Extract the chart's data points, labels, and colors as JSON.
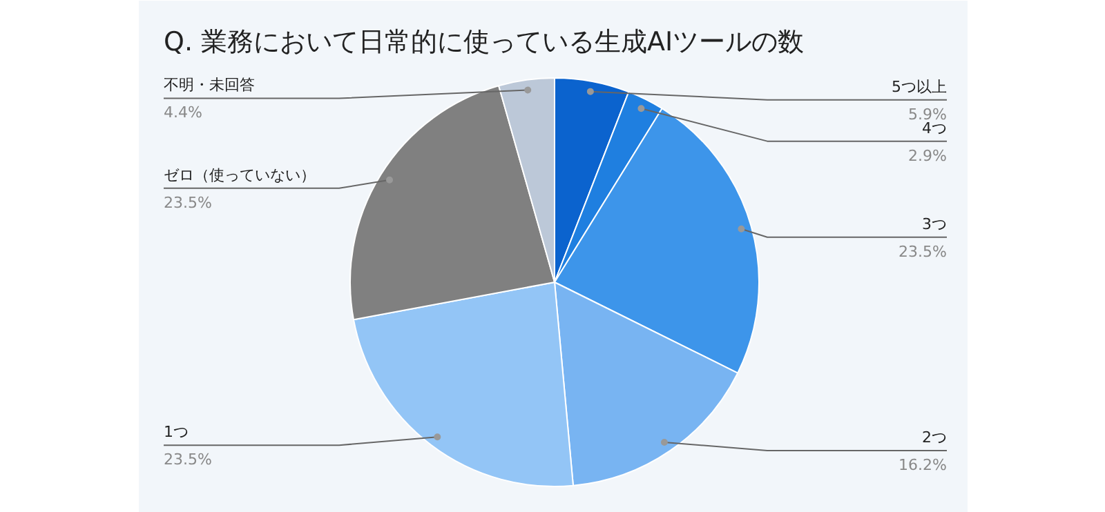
{
  "chart_data": {
    "type": "pie",
    "title": "Q. 業務において日常的に使っている生成AIツールの数",
    "categories": [
      "5つ以上",
      "4つ",
      "3つ",
      "2つ",
      "1つ",
      "ゼロ（使っていない）",
      "不明・未回答"
    ],
    "values": [
      5.9,
      2.9,
      23.5,
      16.2,
      23.5,
      23.5,
      4.4
    ],
    "colors": [
      "#0b63ce",
      "#1f7fe0",
      "#3d95ea",
      "#78b4f2",
      "#93c5f6",
      "#808080",
      "#bcc8d8"
    ],
    "value_labels": [
      "5.9%",
      "2.9%",
      "23.5%",
      "16.2%",
      "23.5%",
      "23.5%",
      "4.4%"
    ]
  }
}
